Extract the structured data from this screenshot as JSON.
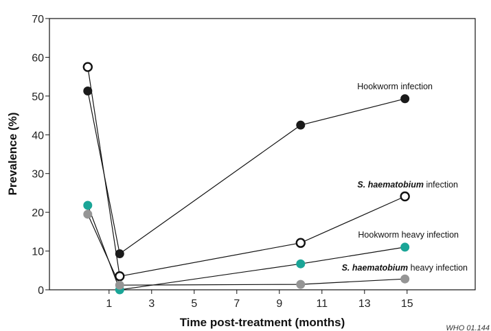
{
  "chart_data": {
    "type": "line",
    "title": "",
    "xlabel": "Time post-treatment (months)",
    "ylabel": "Prevalence (%)",
    "xlim": [
      -1.8,
      18.2
    ],
    "ylim": [
      0,
      70
    ],
    "xticks": [
      1,
      3,
      5,
      7,
      9,
      11,
      13,
      15
    ],
    "yticks": [
      0,
      10,
      20,
      30,
      40,
      50,
      60,
      70
    ],
    "grid": false,
    "legend": "none",
    "series": [
      {
        "name": "Hookworm infection",
        "label_parts": [
          {
            "text": "Hookworm infection",
            "italic": false
          }
        ],
        "marker": "filled",
        "color": "#1a1a1a",
        "x": [
          0,
          1.5,
          10,
          14.9
        ],
        "y": [
          51.3,
          9.3,
          42.5,
          49.3
        ]
      },
      {
        "name": "S. haematobium infection",
        "label_parts": [
          {
            "text": "S. haematobium",
            "italic": true
          },
          {
            "text": " infection",
            "italic": false
          }
        ],
        "marker": "open",
        "color": "#1a1a1a",
        "x": [
          0,
          1.5,
          10,
          14.9
        ],
        "y": [
          57.5,
          3.5,
          12.1,
          24.1
        ]
      },
      {
        "name": "Hookworm heavy infection",
        "label_parts": [
          {
            "text": "Hookworm heavy infection",
            "italic": false
          }
        ],
        "marker": "filled",
        "color": "#1aa597",
        "x": [
          0,
          1.5,
          10,
          14.9
        ],
        "y": [
          21.8,
          0,
          6.7,
          11.0
        ]
      },
      {
        "name": "S. haematobium heavy infection",
        "label_parts": [
          {
            "text": "S. haematobium",
            "italic": true
          },
          {
            "text": " heavy infection",
            "italic": false
          }
        ],
        "marker": "filled",
        "color": "#959595",
        "x": [
          0,
          1.5,
          10,
          14.9
        ],
        "y": [
          19.5,
          1.2,
          1.4,
          2.8
        ]
      }
    ]
  },
  "credit": "WHO 01.144"
}
